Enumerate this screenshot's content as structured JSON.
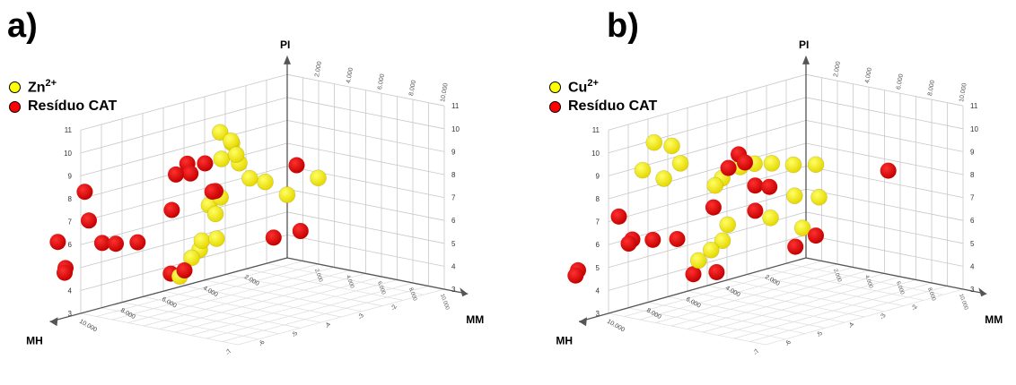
{
  "chart_data": [
    {
      "type": "scatter3d",
      "panel_label": "a)",
      "axes": {
        "x": {
          "label": "MM",
          "ticks": [
            "2.000",
            "4.000",
            "6.000",
            "8.000",
            "10.000"
          ]
        },
        "y": {
          "label": "MH",
          "ticks": [
            "2.000",
            "4.000",
            "6.000",
            "8.000",
            "10.000"
          ]
        },
        "z": {
          "label": "PI",
          "ticks": [
            "3",
            "4",
            "5",
            "6",
            "7",
            "8",
            "9",
            "10",
            "11"
          ]
        },
        "side_ticks": [
          "-2",
          "-3",
          "-4",
          "-5",
          "-6",
          "-7"
        ]
      },
      "series": [
        {
          "name": "Zn",
          "name_sup": "2+",
          "color": "#ffff00",
          "points": [
            [
              2.3,
              5.0,
              10.0
            ],
            [
              2.6,
              4.7,
              9.6
            ],
            [
              2.0,
              4.2,
              9.3
            ],
            [
              2.8,
              4.6,
              9.0
            ],
            [
              1.6,
              4.4,
              8.6
            ],
            [
              2.2,
              4.0,
              8.4
            ],
            [
              3.4,
              4.4,
              8.0
            ],
            [
              3.2,
              3.5,
              7.6
            ],
            [
              4.2,
              3.2,
              7.1
            ],
            [
              4.6,
              2.0,
              7.6
            ],
            [
              1.8,
              4.6,
              7.0
            ],
            [
              1.2,
              4.7,
              6.6
            ],
            [
              2.0,
              5.0,
              6.4
            ],
            [
              2.6,
              5.4,
              5.5
            ],
            [
              1.4,
              5.2,
              5.2
            ],
            [
              1.0,
              5.0,
              4.7
            ],
            [
              1.8,
              6.0,
              4.7
            ],
            [
              1.7,
              6.5,
              4.0
            ]
          ]
        },
        {
          "name": "Residuo",
          "color": "#ff0000",
          "points": [
            [
              1.0,
              5.6,
              8.6
            ],
            [
              1.6,
              5.2,
              8.6
            ],
            [
              1.2,
              5.6,
              8.2
            ],
            [
              0.8,
              6.0,
              8.2
            ],
            [
              2.0,
              5.0,
              7.4
            ],
            [
              2.6,
              5.6,
              7.6
            ],
            [
              5.2,
              3.5,
              8.6
            ],
            [
              0.8,
              6.2,
              6.7
            ],
            [
              0.2,
              7.4,
              5.5
            ],
            [
              -0.4,
              8.0,
              5.5
            ],
            [
              -1.0,
              8.2,
              5.5
            ],
            [
              -0.8,
              9.0,
              6.7
            ],
            [
              -0.8,
              9.2,
              8.0
            ],
            [
              -1.2,
              10.2,
              6.0
            ],
            [
              -3.0,
              8.5,
              4.0
            ],
            [
              -3.6,
              8.0,
              4.0
            ],
            [
              1.0,
              6.4,
              4.0
            ],
            [
              2.0,
              6.5,
              4.3
            ],
            [
              3.6,
              3.4,
              5.2
            ],
            [
              4.0,
              2.4,
              5.3
            ]
          ]
        }
      ]
    },
    {
      "type": "scatter3d",
      "panel_label": "b)",
      "axes": {
        "x": {
          "label": "MM",
          "ticks": [
            "2.000",
            "4.000",
            "6.000",
            "8.000",
            "10.000"
          ]
        },
        "y": {
          "label": "MH",
          "ticks": [
            "2.000",
            "4.000",
            "6.000",
            "8.000",
            "10.000"
          ]
        },
        "z": {
          "label": "PI",
          "ticks": [
            "3",
            "4",
            "5",
            "6",
            "7",
            "8",
            "9",
            "10",
            "11"
          ]
        },
        "side_ticks": [
          "-2",
          "-3",
          "-4",
          "-5",
          "-6",
          "-7"
        ]
      },
      "series": [
        {
          "name": "Cu",
          "name_sup": "2+",
          "color": "#ffff00",
          "points": [
            [
              -1.5,
              6.5,
              9.4
            ],
            [
              -1.0,
              6.0,
              9.2
            ],
            [
              -0.2,
              6.2,
              8.6
            ],
            [
              -1.6,
              7.0,
              8.3
            ],
            [
              0.0,
              7.2,
              8.2
            ],
            [
              1.6,
              4.6,
              8.3
            ],
            [
              2.0,
              4.2,
              8.4
            ],
            [
              2.6,
              3.8,
              8.4
            ],
            [
              3.6,
              3.5,
              8.4
            ],
            [
              4.4,
              3.0,
              8.4
            ],
            [
              1.2,
              5.2,
              7.9
            ],
            [
              1.0,
              5.4,
              7.6
            ],
            [
              3.8,
              3.6,
              7.1
            ],
            [
              4.6,
              3.0,
              7.0
            ],
            [
              3.4,
              4.5,
              6.3
            ],
            [
              1.8,
              5.4,
              6.0
            ],
            [
              1.6,
              5.5,
              5.3
            ],
            [
              1.5,
              6.0,
              5.0
            ],
            [
              3.8,
              3.2,
              5.6
            ],
            [
              1.2,
              6.4,
              4.6
            ]
          ]
        },
        {
          "name": "Residuo",
          "color": "#ff0000",
          "points": [
            [
              2.0,
              5.0,
              9.0
            ],
            [
              2.4,
              5.0,
              8.7
            ],
            [
              1.6,
              5.2,
              8.4
            ],
            [
              2.8,
              4.8,
              7.7
            ],
            [
              3.2,
              4.4,
              7.6
            ],
            [
              1.4,
              5.8,
              6.8
            ],
            [
              2.8,
              4.8,
              6.6
            ],
            [
              -0.6,
              8.5,
              5.6
            ],
            [
              -1.0,
              8.0,
              5.6
            ],
            [
              -0.2,
              7.6,
              5.6
            ],
            [
              0.6,
              7.0,
              5.6
            ],
            [
              -2.6,
              9.6,
              4.2
            ],
            [
              -3.2,
              9.0,
              4.2
            ],
            [
              -0.6,
              9.0,
              6.9
            ],
            [
              7.0,
              1.4,
              8.1
            ],
            [
              4.4,
              3.0,
              5.3
            ],
            [
              3.6,
              3.4,
              4.8
            ],
            [
              1.0,
              6.5,
              4.0
            ],
            [
              1.6,
              5.8,
              4.0
            ]
          ]
        }
      ]
    }
  ],
  "legend": {
    "a": {
      "ion_name": "Zn",
      "ion_sup": "2+",
      "residue": "Resíduo CAT"
    },
    "b": {
      "ion_name": "Cu",
      "ion_sup": "2+",
      "residue": "Resíduo CAT"
    }
  },
  "colors": {
    "ion": "#ffff00",
    "residue": "#ff0000",
    "grid": "#c8c8c8",
    "axis": "#555555"
  }
}
